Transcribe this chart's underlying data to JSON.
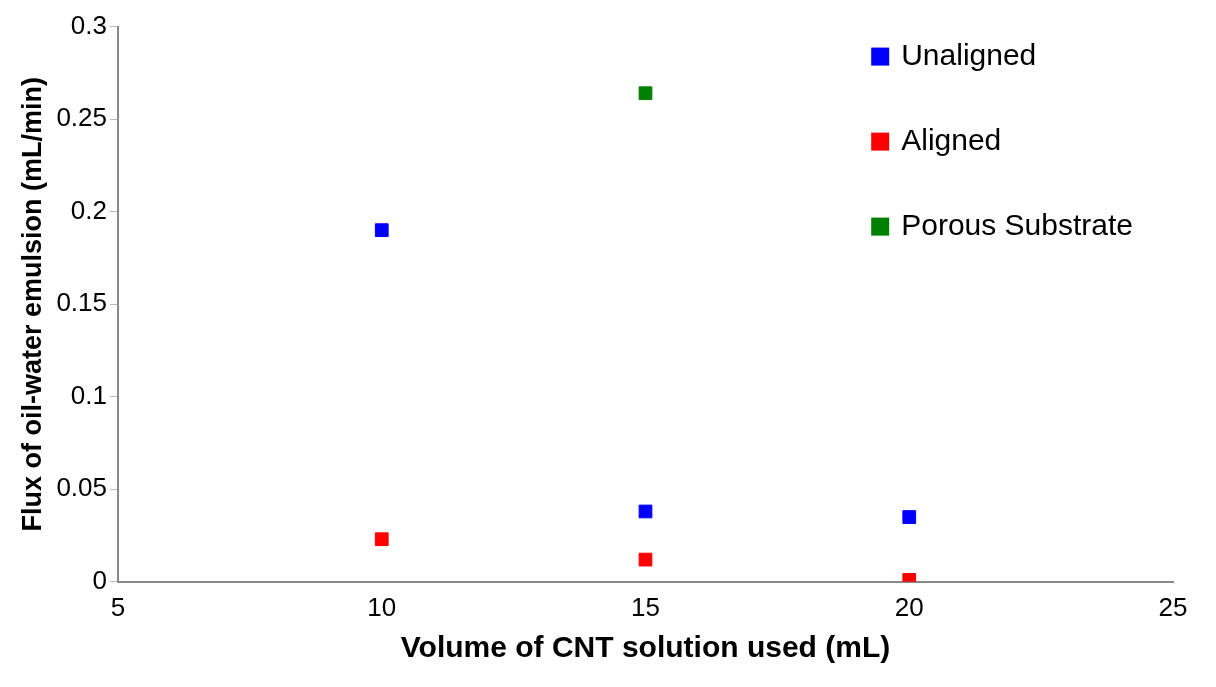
{
  "chart_data": {
    "type": "scatter",
    "xlabel": "Volume of CNT solution used (mL)",
    "ylabel": "Flux of oil-water emulsion (mL/min)",
    "xlim": [
      5,
      25
    ],
    "xticks": [
      5,
      10,
      15,
      20,
      25
    ],
    "ylim": [
      0,
      0.3
    ],
    "yticks": [
      0,
      0.05,
      0.1,
      0.15,
      0.2,
      0.25,
      0.3
    ],
    "series": [
      {
        "name": "Unaligned",
        "color": "#0000ff",
        "x": [
          10,
          15,
          20
        ],
        "values": [
          0.19,
          0.038,
          0.035
        ]
      },
      {
        "name": "Aligned",
        "color": "#ff0000",
        "x": [
          10,
          15,
          20
        ],
        "values": [
          0.023,
          0.012,
          0.001
        ]
      },
      {
        "name": "Porous Substrate",
        "color": "#008000",
        "x": [
          15
        ],
        "values": [
          0.264
        ]
      }
    ],
    "marker": "square",
    "grid": false,
    "legend": "top right"
  }
}
